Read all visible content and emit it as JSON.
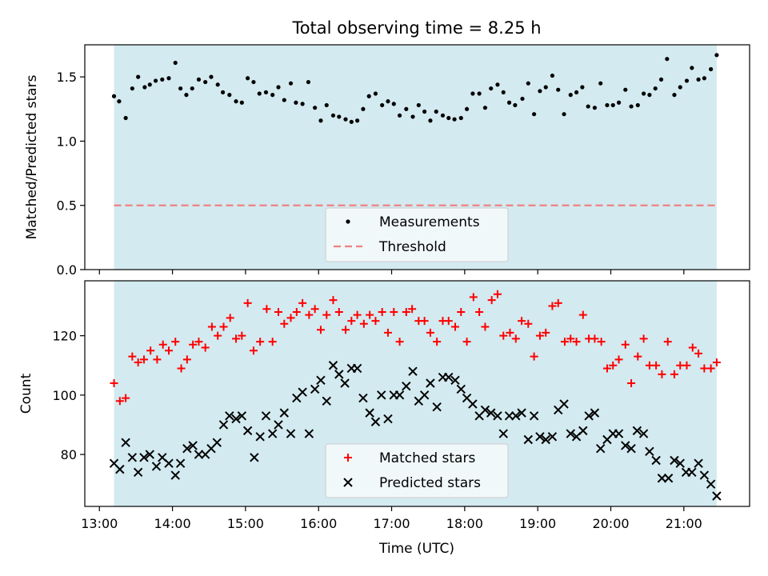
{
  "figure": {
    "title": "Total observing time = 8.25 h",
    "xlabel": "Time (UTC)",
    "x_ticks": [
      {
        "value": 13,
        "label": "13:00"
      },
      {
        "value": 14,
        "label": "14:00"
      },
      {
        "value": 15,
        "label": "15:00"
      },
      {
        "value": 16,
        "label": "16:00"
      },
      {
        "value": 17,
        "label": "17:00"
      },
      {
        "value": 18,
        "label": "18:00"
      },
      {
        "value": 19,
        "label": "19:00"
      },
      {
        "value": 20,
        "label": "20:00"
      },
      {
        "value": 21,
        "label": "21:00"
      }
    ]
  },
  "colors": {
    "shade": "#d3eaf0",
    "measurement": "#000000",
    "threshold": "#f08080",
    "matched": "#ff0000",
    "predicted": "#000000",
    "legend_bg": "#f6fafc"
  },
  "chart_data": [
    {
      "type": "scatter",
      "title": "Total observing time = 8.25 h",
      "xlabel": "",
      "ylabel": "Matched/Predicted stars",
      "xlim": [
        12.8,
        21.9
      ],
      "ylim": [
        0.0,
        1.75
      ],
      "x_unit": "hours UTC",
      "y_ticks": [
        {
          "value": 0.0,
          "label": "0.0"
        },
        {
          "value": 0.5,
          "label": "0.5"
        },
        {
          "value": 1.0,
          "label": "1.0"
        },
        {
          "value": 1.5,
          "label": "1.5"
        }
      ],
      "shaded_span": [
        13.2,
        21.45
      ],
      "grid": false,
      "legend_position": "lower center",
      "series": [
        {
          "name": "Measurements",
          "marker": "dot",
          "x": [
            13.2,
            13.27,
            13.36,
            13.45,
            13.53,
            13.62,
            13.69,
            13.77,
            13.86,
            13.95,
            14.04,
            14.11,
            14.19,
            14.27,
            14.36,
            14.45,
            14.53,
            14.62,
            14.69,
            14.78,
            14.87,
            14.95,
            15.03,
            15.11,
            15.19,
            15.28,
            15.37,
            15.45,
            15.53,
            15.62,
            15.69,
            15.78,
            15.86,
            15.95,
            16.03,
            16.11,
            16.2,
            16.28,
            16.37,
            16.45,
            16.53,
            16.61,
            16.69,
            16.78,
            16.87,
            16.95,
            17.03,
            17.11,
            17.2,
            17.29,
            17.37,
            17.45,
            17.53,
            17.61,
            17.7,
            17.78,
            17.86,
            17.95,
            18.03,
            18.11,
            18.2,
            18.28,
            18.36,
            18.45,
            18.53,
            18.61,
            18.69,
            18.79,
            18.87,
            18.95,
            19.03,
            19.11,
            19.2,
            19.28,
            19.36,
            19.45,
            19.53,
            19.61,
            19.69,
            19.78,
            19.86,
            19.95,
            20.03,
            20.11,
            20.2,
            20.28,
            20.37,
            20.45,
            20.53,
            20.61,
            20.69,
            20.77,
            20.87,
            20.95,
            21.04,
            21.11,
            21.2,
            21.28,
            21.37,
            21.45
          ],
          "y": [
            1.35,
            1.31,
            1.18,
            1.41,
            1.5,
            1.42,
            1.44,
            1.47,
            1.48,
            1.49,
            1.61,
            1.41,
            1.36,
            1.41,
            1.48,
            1.46,
            1.5,
            1.44,
            1.38,
            1.36,
            1.31,
            1.3,
            1.49,
            1.46,
            1.37,
            1.38,
            1.36,
            1.42,
            1.32,
            1.45,
            1.3,
            1.29,
            1.46,
            1.26,
            1.16,
            1.28,
            1.2,
            1.19,
            1.17,
            1.15,
            1.16,
            1.25,
            1.35,
            1.37,
            1.28,
            1.31,
            1.29,
            1.2,
            1.25,
            1.19,
            1.28,
            1.23,
            1.16,
            1.23,
            1.2,
            1.18,
            1.17,
            1.18,
            1.25,
            1.37,
            1.37,
            1.26,
            1.41,
            1.44,
            1.38,
            1.3,
            1.28,
            1.33,
            1.45,
            1.21,
            1.39,
            1.42,
            1.51,
            1.4,
            1.21,
            1.36,
            1.38,
            1.42,
            1.27,
            1.26,
            1.45,
            1.28,
            1.28,
            1.3,
            1.4,
            1.27,
            1.28,
            1.37,
            1.36,
            1.41,
            1.48,
            1.64,
            1.36,
            1.42,
            1.47,
            1.57,
            1.48,
            1.49,
            1.56,
            1.67
          ]
        },
        {
          "name": "Threshold",
          "marker": "dashed-line",
          "x": [
            13.2,
            21.45
          ],
          "y": [
            0.5,
            0.5
          ]
        }
      ]
    },
    {
      "type": "scatter",
      "title": "",
      "xlabel": "Time (UTC)",
      "ylabel": "Count",
      "xlim": [
        12.8,
        21.9
      ],
      "ylim": [
        62.5,
        138.5
      ],
      "x_unit": "hours UTC",
      "y_ticks": [
        {
          "value": 80,
          "label": "80"
        },
        {
          "value": 100,
          "label": "100"
        },
        {
          "value": 120,
          "label": "120"
        }
      ],
      "shaded_span": [
        13.2,
        21.45
      ],
      "grid": false,
      "legend_position": "lower center",
      "series": [
        {
          "name": "Matched stars",
          "marker": "plus",
          "x": [
            13.2,
            13.28,
            13.36,
            13.45,
            13.53,
            13.61,
            13.7,
            13.79,
            13.87,
            13.95,
            14.04,
            14.12,
            14.2,
            14.28,
            14.36,
            14.45,
            14.54,
            14.62,
            14.7,
            14.79,
            14.87,
            14.95,
            15.03,
            15.11,
            15.2,
            15.29,
            15.37,
            15.45,
            15.53,
            15.62,
            15.7,
            15.78,
            15.87,
            15.95,
            16.03,
            16.11,
            16.2,
            16.28,
            16.37,
            16.45,
            16.53,
            16.62,
            16.7,
            16.78,
            16.87,
            16.95,
            17.03,
            17.11,
            17.2,
            17.28,
            17.37,
            17.45,
            17.53,
            17.62,
            17.7,
            17.78,
            17.87,
            17.95,
            18.03,
            18.12,
            18.2,
            18.28,
            18.37,
            18.45,
            18.53,
            18.62,
            18.7,
            18.78,
            18.87,
            18.95,
            19.03,
            19.11,
            19.2,
            19.28,
            19.37,
            19.45,
            19.53,
            19.62,
            19.7,
            19.78,
            19.87,
            19.95,
            20.03,
            20.11,
            20.2,
            20.28,
            20.37,
            20.45,
            20.53,
            20.62,
            20.7,
            20.78,
            20.87,
            20.95,
            21.04,
            21.12,
            21.2,
            21.28,
            21.37,
            21.45
          ],
          "y": [
            104,
            98,
            99,
            113,
            111,
            112,
            115,
            112,
            117,
            115,
            118,
            109,
            112,
            117,
            118,
            116,
            123,
            120,
            123,
            126,
            119,
            120,
            131,
            115,
            118,
            129,
            118,
            128,
            124,
            126,
            128,
            131,
            127,
            129,
            122,
            127,
            132,
            128,
            122,
            125,
            127,
            124,
            127,
            125,
            128,
            121,
            128,
            118,
            128,
            129,
            125,
            125,
            121,
            118,
            125,
            125,
            123,
            128,
            118,
            133,
            128,
            123,
            132,
            134,
            120,
            121,
            119,
            125,
            124,
            113,
            120,
            121,
            130,
            131,
            118,
            119,
            118,
            127,
            119,
            119,
            118,
            109,
            110,
            112,
            117,
            104,
            113,
            119,
            110,
            110,
            107,
            118,
            107,
            110,
            110,
            116,
            114,
            109,
            109,
            111
          ]
        },
        {
          "name": "Predicted stars",
          "marker": "x",
          "x": [
            13.2,
            13.28,
            13.36,
            13.45,
            13.53,
            13.61,
            13.69,
            13.78,
            13.86,
            13.95,
            14.04,
            14.11,
            14.2,
            14.28,
            14.36,
            14.45,
            14.53,
            14.61,
            14.7,
            14.78,
            14.87,
            14.95,
            15.03,
            15.12,
            15.2,
            15.28,
            15.37,
            15.45,
            15.53,
            15.62,
            15.7,
            15.78,
            15.87,
            15.95,
            16.03,
            16.11,
            16.2,
            16.28,
            16.36,
            16.45,
            16.53,
            16.61,
            16.7,
            16.78,
            16.86,
            16.95,
            17.03,
            17.11,
            17.2,
            17.29,
            17.37,
            17.45,
            17.53,
            17.62,
            17.7,
            17.78,
            17.87,
            17.95,
            18.03,
            18.11,
            18.2,
            18.28,
            18.36,
            18.45,
            18.53,
            18.61,
            18.7,
            18.78,
            18.87,
            18.95,
            19.03,
            19.11,
            19.2,
            19.28,
            19.36,
            19.45,
            19.53,
            19.62,
            19.7,
            19.78,
            19.86,
            19.95,
            20.03,
            20.11,
            20.2,
            20.28,
            20.36,
            20.45,
            20.53,
            20.62,
            20.7,
            20.79,
            20.87,
            20.95,
            21.03,
            21.11,
            21.2,
            21.28,
            21.37,
            21.45
          ],
          "y": [
            77,
            75,
            84,
            79,
            74,
            79,
            80,
            76,
            79,
            77,
            73,
            77,
            82,
            83,
            80,
            80,
            82,
            84,
            90,
            93,
            92,
            93,
            88,
            79,
            86,
            93,
            87,
            90,
            94,
            87,
            99,
            101,
            87,
            102,
            105,
            98,
            110,
            107,
            104,
            109,
            109,
            99,
            94,
            91,
            100,
            92,
            100,
            100,
            103,
            108,
            98,
            100,
            104,
            96,
            106,
            106,
            105,
            102,
            99,
            97,
            93,
            95,
            94,
            93,
            87,
            93,
            93,
            94,
            85,
            93,
            86,
            85,
            86,
            95,
            97,
            87,
            86,
            88,
            93,
            94,
            82,
            85,
            87,
            87,
            83,
            82,
            88,
            87,
            81,
            78,
            72,
            72,
            78,
            77,
            74,
            74,
            77,
            73,
            70,
            66
          ]
        }
      ]
    }
  ]
}
